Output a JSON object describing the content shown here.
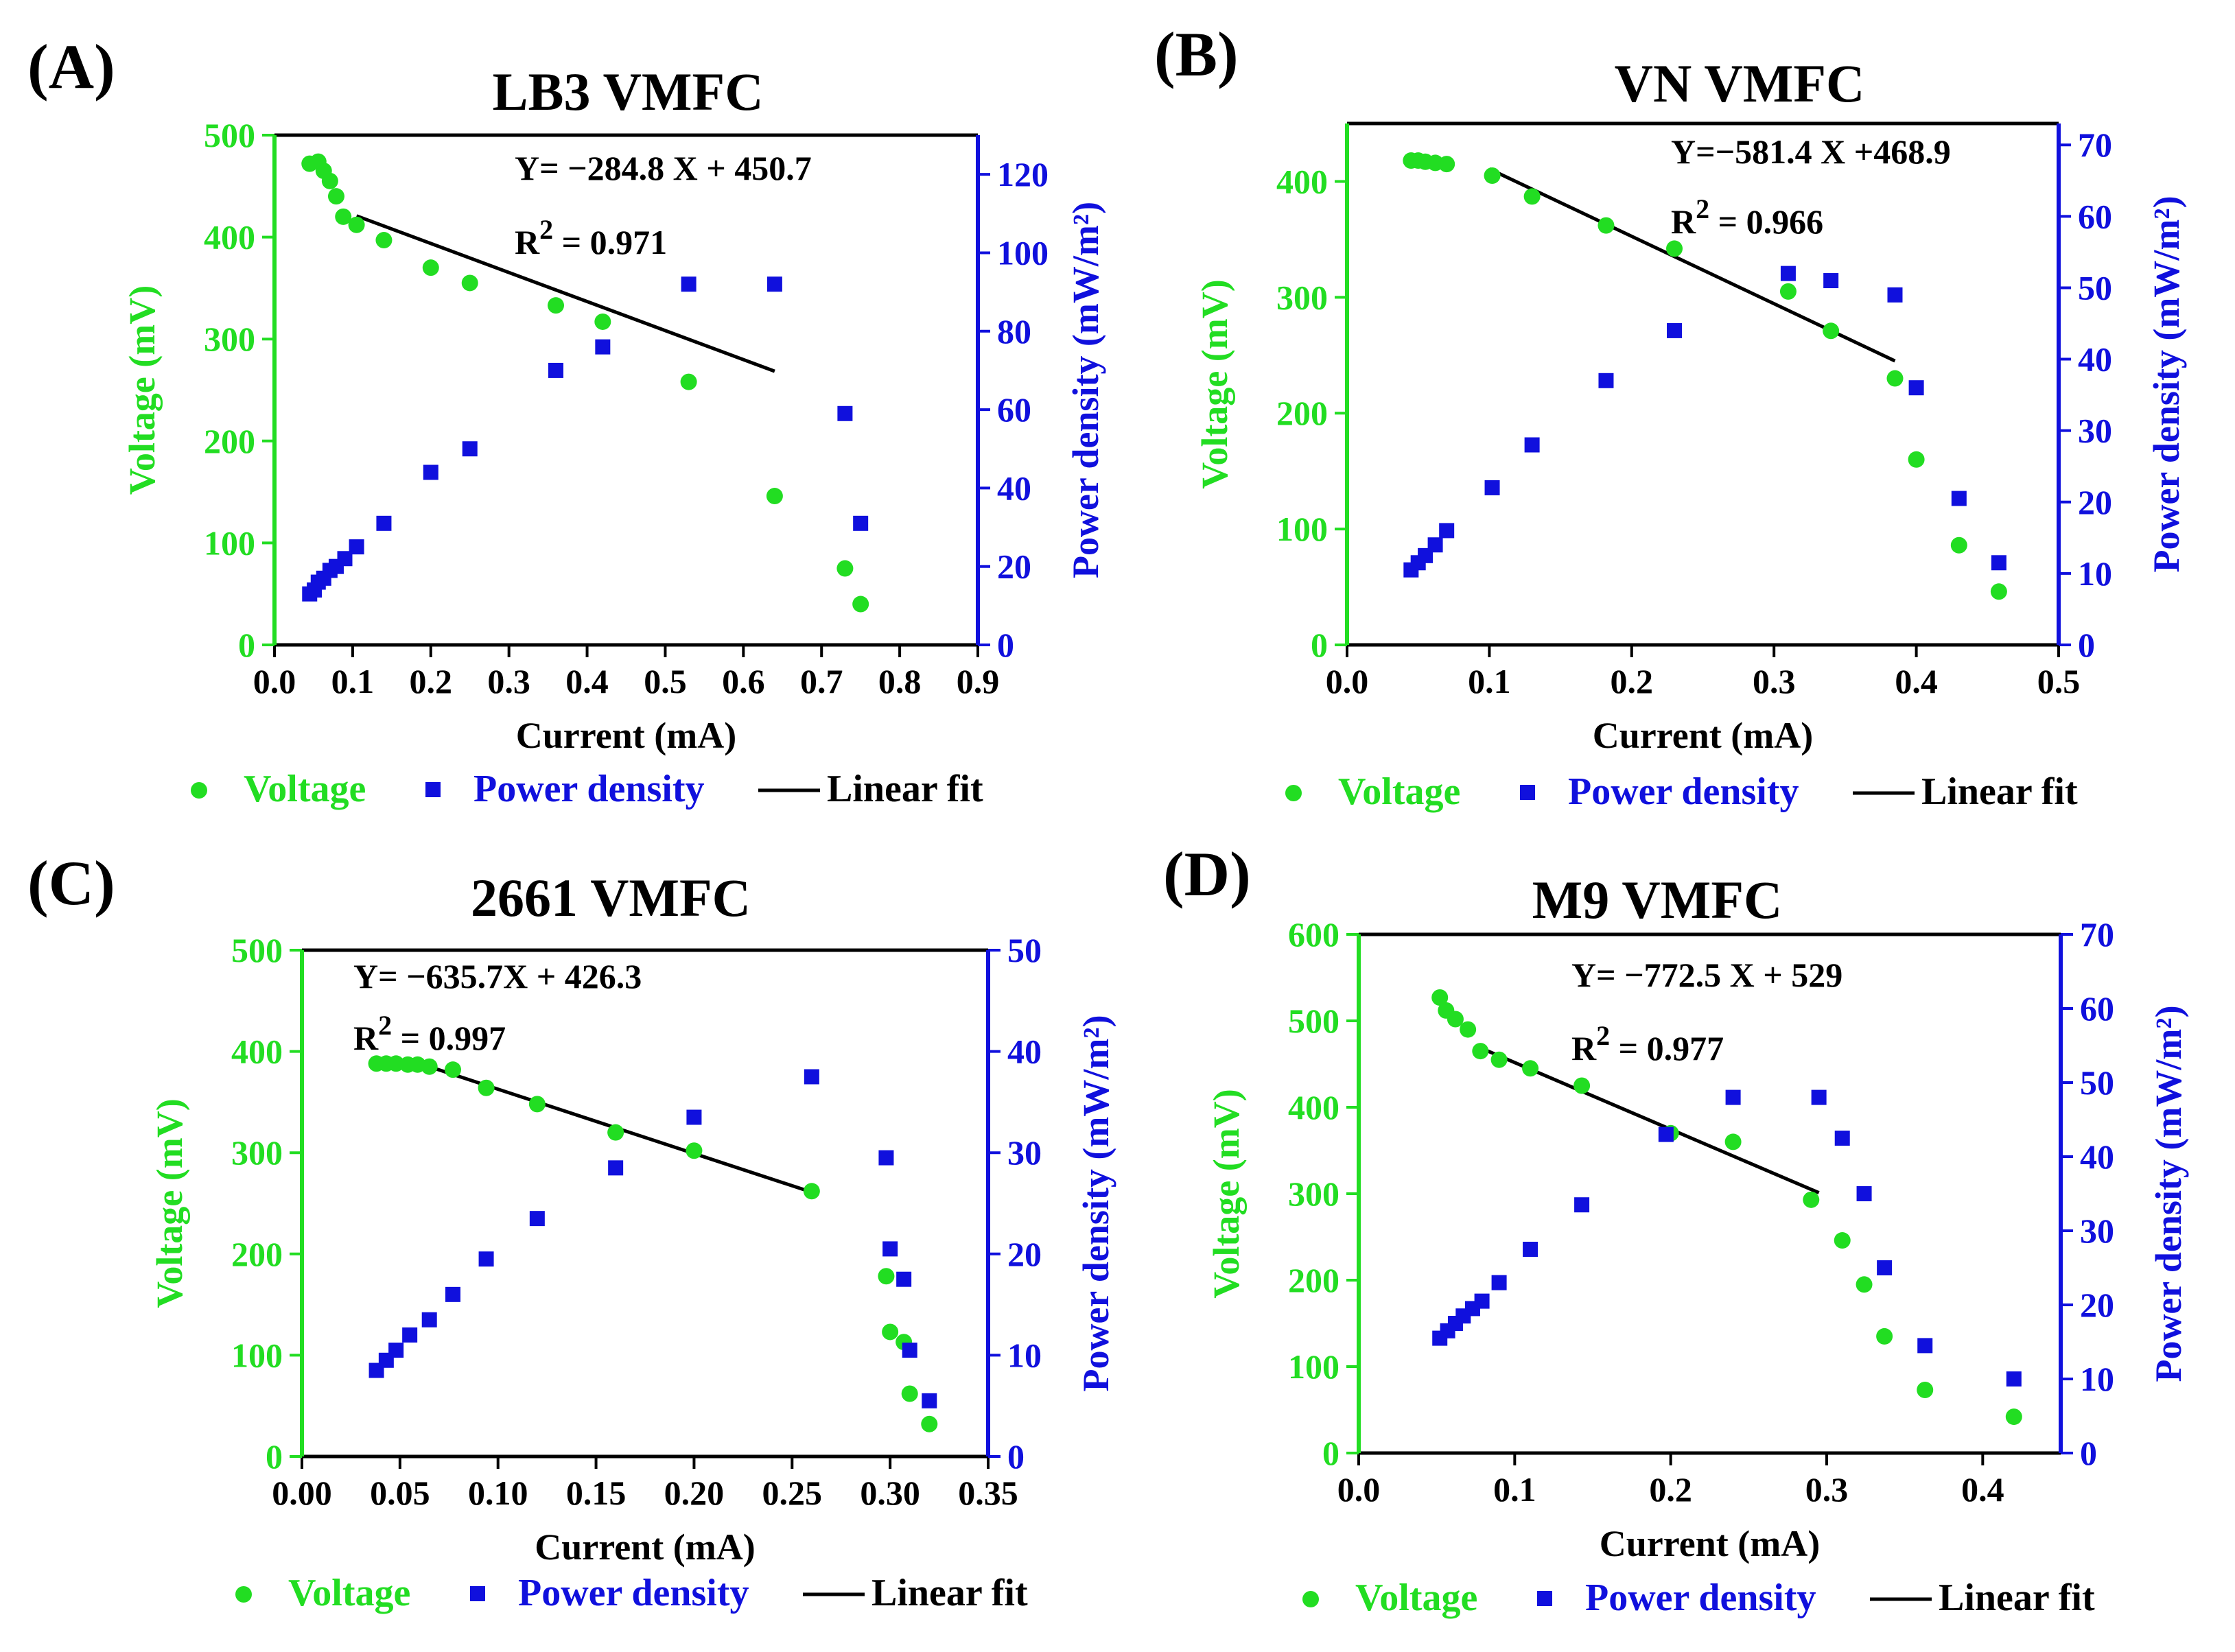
{
  "colors": {
    "voltage": "#22dd22",
    "power": "#1010dd",
    "fit": "#000000"
  },
  "legend": {
    "voltage": "Voltage",
    "power": "Power density",
    "fit": "Linear fit"
  },
  "chart_data": [
    {
      "type": "scatter",
      "panel_label": "(A)",
      "title": "LB3 VMFC",
      "xlabel": "Current (mA)",
      "ylabel": "Voltage (mV)",
      "y2label": "Power density (mW/m²)",
      "xlim": [
        0,
        0.9
      ],
      "ylim": [
        0,
        500
      ],
      "y2lim": [
        0,
        130
      ],
      "xticks": [
        "0.0",
        "0.1",
        "0.2",
        "0.3",
        "0.4",
        "0.5",
        "0.6",
        "0.7",
        "0.8",
        "0.9"
      ],
      "yticks": [
        "0",
        "100",
        "200",
        "300",
        "400",
        "500"
      ],
      "y2ticks": [
        "0",
        "20",
        "40",
        "60",
        "80",
        "100",
        "120"
      ],
      "equation": "Y= −284.8 X + 450.7",
      "r2_prefix": "R",
      "r2_sup": "2",
      "r2_value": " = 0.971",
      "fit": {
        "slope_text": "−284.8",
        "intercept_text": "450.7",
        "x_range": [
          0.105,
          0.64
        ]
      },
      "series": [
        {
          "name": "Voltage",
          "x": [
            0.045,
            0.056,
            0.063,
            0.071,
            0.079,
            0.088,
            0.105,
            0.14,
            0.2,
            0.25,
            0.36,
            0.42,
            0.53,
            0.64,
            0.73,
            0.75
          ],
          "y": [
            472,
            474,
            465,
            455,
            440,
            420,
            412,
            397,
            370,
            355,
            333,
            317,
            258,
            146,
            75,
            40
          ]
        },
        {
          "name": "Power density",
          "x": [
            0.045,
            0.051,
            0.056,
            0.063,
            0.071,
            0.079,
            0.09,
            0.105,
            0.14,
            0.2,
            0.25,
            0.36,
            0.42,
            0.53,
            0.64,
            0.73,
            0.75
          ],
          "y": [
            13,
            14,
            16,
            17,
            19,
            20,
            22,
            25,
            31,
            44,
            50,
            70,
            76,
            92,
            92,
            59,
            31
          ]
        }
      ]
    },
    {
      "type": "scatter",
      "panel_label": "(B)",
      "title": "VN VMFC",
      "xlabel": "Current (mA)",
      "ylabel": "Voltage (mV)",
      "y2label": "Power density (mW/m²)",
      "xlim": [
        0,
        0.5
      ],
      "ylim": [
        0,
        450
      ],
      "y2lim": [
        0,
        73
      ],
      "xticks": [
        "0.0",
        "0.1",
        "0.2",
        "0.3",
        "0.4",
        "0.5"
      ],
      "yticks": [
        "0",
        "100",
        "200",
        "300",
        "400"
      ],
      "y2ticks": [
        "0",
        "10",
        "20",
        "30",
        "40",
        "50",
        "60",
        "70"
      ],
      "equation": "Y=−581.4 X +468.9",
      "r2_prefix": "R",
      "r2_sup": "2",
      "r2_value": " = 0.966",
      "fit": {
        "slope_text": "−581.4",
        "intercept_text": "468.9",
        "x_range": [
          0.1,
          0.385
        ]
      },
      "series": [
        {
          "name": "Voltage",
          "x": [
            0.045,
            0.05,
            0.055,
            0.062,
            0.07,
            0.102,
            0.13,
            0.182,
            0.23,
            0.31,
            0.34,
            0.385,
            0.4,
            0.43,
            0.458
          ],
          "y": [
            418,
            418,
            417,
            416,
            415,
            405,
            387,
            362,
            342,
            305,
            271,
            230,
            160,
            86,
            46
          ]
        },
        {
          "name": "Power density",
          "x": [
            0.045,
            0.05,
            0.055,
            0.062,
            0.07,
            0.102,
            0.13,
            0.182,
            0.23,
            0.31,
            0.34,
            0.385,
            0.4,
            0.43,
            0.458
          ],
          "y": [
            10.5,
            11.5,
            12.5,
            14,
            16,
            22,
            28,
            37,
            44,
            52,
            51,
            49,
            36,
            20.5,
            11.5
          ]
        }
      ]
    },
    {
      "type": "scatter",
      "panel_label": "(C)",
      "title": "2661 VMFC",
      "xlabel": "Current (mA)",
      "ylabel": "Voltage (mV)",
      "y2label": "Power density (mW/m²)",
      "xlim": [
        0,
        0.35
      ],
      "ylim": [
        0,
        500
      ],
      "y2lim": [
        0,
        50
      ],
      "xticks": [
        "0.00",
        "0.05",
        "0.10",
        "0.15",
        "0.20",
        "0.25",
        "0.30",
        "0.35"
      ],
      "yticks": [
        "0",
        "100",
        "200",
        "300",
        "400",
        "500"
      ],
      "y2ticks": [
        "0",
        "10",
        "20",
        "30",
        "40",
        "50"
      ],
      "equation": "Y= −635.7X + 426.3",
      "r2_prefix": "R",
      "r2_sup": "2",
      "r2_value": " = 0.997",
      "fit": {
        "slope_text": "−635.7",
        "intercept_text": "426.3",
        "x_range": [
          0.065,
          0.262
        ]
      },
      "series": [
        {
          "name": "Voltage",
          "x": [
            0.038,
            0.043,
            0.048,
            0.054,
            0.059,
            0.065,
            0.077,
            0.094,
            0.12,
            0.16,
            0.2,
            0.26,
            0.298,
            0.3,
            0.307,
            0.31,
            0.32
          ],
          "y": [
            388,
            388,
            388,
            387,
            387,
            385,
            382,
            364,
            348,
            320,
            302,
            262,
            178,
            123,
            113,
            62,
            32
          ]
        },
        {
          "name": "Power density",
          "x": [
            0.038,
            0.043,
            0.048,
            0.055,
            0.065,
            0.077,
            0.094,
            0.12,
            0.16,
            0.2,
            0.26,
            0.298,
            0.3,
            0.307,
            0.31,
            0.32
          ],
          "y": [
            8.5,
            9.5,
            10.5,
            12,
            13.5,
            16,
            19.5,
            23.5,
            28.5,
            33.5,
            37.5,
            29.5,
            20.5,
            17.5,
            10.5,
            5.5
          ]
        }
      ]
    },
    {
      "type": "scatter",
      "panel_label": "(D)",
      "title": "M9 VMFC",
      "xlabel": "Current (mA)",
      "ylabel": "Voltage (mV)",
      "y2label": "Power density (mW/m²)",
      "xlim": [
        0,
        0.45
      ],
      "ylim": [
        0,
        600
      ],
      "y2lim": [
        0,
        70
      ],
      "xticks": [
        "0.0",
        "0.1",
        "0.2",
        "0.3",
        "0.4"
      ],
      "yticks": [
        "0",
        "100",
        "200",
        "300",
        "400",
        "500",
        "600"
      ],
      "y2ticks": [
        "0",
        "10",
        "20",
        "30",
        "40",
        "50",
        "60",
        "70"
      ],
      "equation": "Y= −772.5 X + 529",
      "r2_prefix": "R",
      "r2_sup": "2",
      "r2_value": " = 0.977",
      "fit": {
        "slope_text": "−772.5",
        "intercept_text": "529",
        "x_range": [
          0.075,
          0.295
        ]
      },
      "series": [
        {
          "name": "Voltage",
          "x": [
            0.052,
            0.056,
            0.062,
            0.07,
            0.078,
            0.09,
            0.11,
            0.143,
            0.2,
            0.24,
            0.29,
            0.31,
            0.324,
            0.337,
            0.363,
            0.42
          ],
          "y": [
            527,
            512,
            502,
            490,
            465,
            455,
            445,
            425,
            370,
            360,
            293,
            246,
            195,
            135,
            73,
            42
          ]
        },
        {
          "name": "Power density",
          "x": [
            0.052,
            0.057,
            0.062,
            0.067,
            0.073,
            0.079,
            0.09,
            0.11,
            0.143,
            0.197,
            0.24,
            0.295,
            0.31,
            0.324,
            0.337,
            0.363,
            0.42
          ],
          "y": [
            15.5,
            16.5,
            17.5,
            18.5,
            19.5,
            20.5,
            23,
            27.5,
            33.5,
            43,
            48,
            48,
            42.5,
            35,
            25,
            14.5,
            10
          ]
        }
      ]
    }
  ]
}
